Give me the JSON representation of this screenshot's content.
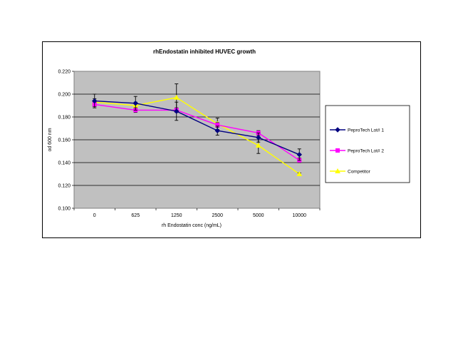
{
  "chart_data": {
    "type": "line",
    "title": "rhEndostatin inhibited HUVEC growth",
    "xlabel": "rh Endostatin conc (ng/mL)",
    "ylabel": "od 600 nm",
    "categories": [
      "0",
      "625",
      "1250",
      "2500",
      "5000",
      "10000"
    ],
    "ylim": [
      0.1,
      0.22
    ],
    "yticks": [
      "0.100",
      "0.120",
      "0.140",
      "0.160",
      "0.180",
      "0.200",
      "0.220"
    ],
    "grid": true,
    "legend": "right",
    "series": [
      {
        "name": "PeproTech Lot# 1",
        "color": "#000080",
        "marker": "diamond",
        "values": [
          0.194,
          0.192,
          0.185,
          0.168,
          0.162,
          0.147
        ],
        "errors": [
          0.006,
          0.006,
          0.008,
          0.004,
          0.004,
          0.005
        ]
      },
      {
        "name": "PeproTech Lot# 2",
        "color": "#ff00ff",
        "marker": "square",
        "values": [
          0.191,
          0.186,
          0.186,
          0.173,
          0.166,
          0.142
        ],
        "errors": [
          0.002,
          0.002,
          0.002,
          0.002,
          0.002,
          0.002
        ]
      },
      {
        "name": "Competitor",
        "color": "#ffff00",
        "marker": "triangle",
        "values": [
          0.193,
          0.19,
          0.197,
          0.174,
          0.155,
          0.13
        ],
        "errors": [
          0.003,
          0.003,
          0.012,
          0.005,
          0.007,
          0.001
        ]
      }
    ]
  }
}
